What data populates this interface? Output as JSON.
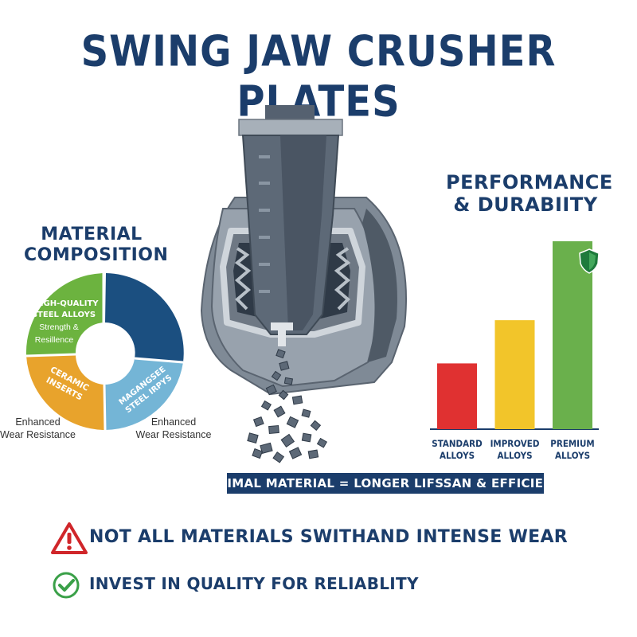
{
  "title": "SWING JAW CRUSHER PLATES",
  "material_composition": {
    "heading_line1": "MATERIAL",
    "heading_line2": "COMPOSITION",
    "segments": [
      {
        "name": "High-Quality Steel Alloys",
        "line1": "HIGH-QUALITY",
        "line2": "STEEL ALLOYS",
        "line3": "Strength &",
        "line4": "Resillence",
        "color": "#6cb33f"
      },
      {
        "name": "Ceramic Inserts",
        "line1": "CERAMIC",
        "line2": "INSERTS",
        "color": "#e8a32c"
      },
      {
        "name": "Magangsee Steel Irpys",
        "line1": "MAGANGSEE",
        "line2": "STEEL IRPYS",
        "color": "#74b5d6"
      },
      {
        "name": "Blue segment",
        "color": "#1b4f80"
      }
    ],
    "note_left_line1": "Enhanced",
    "note_left_line2": "Wear Resistance",
    "note_right_line1": "Enhanced",
    "note_right_line2": "Wear Resistance"
  },
  "performance": {
    "heading_line1": "PERFORMANCE",
    "heading_line2": "& DURABIITY",
    "shield_icon": "shield-icon"
  },
  "chart_data": {
    "type": "bar",
    "title": "PERFORMANCE & DURABIITY",
    "categories": [
      "STANDARD ALLOYS",
      "IMPROVED ALLOYS",
      "PREMIUM ALLOYS"
    ],
    "category_lines": [
      [
        "STANDARD",
        "ALLOYS"
      ],
      [
        "IMPROVED",
        "ALLOYS"
      ],
      [
        "PREMIUM",
        "ALLOYS"
      ]
    ],
    "values": [
      35,
      58,
      100
    ],
    "colors": [
      "#e03131",
      "#f2c52a",
      "#6ab04c"
    ],
    "ylim": [
      0,
      100
    ],
    "grid": false,
    "legend": "none"
  },
  "banner": "OPTIMAL MATERIAL = LONGER LIFSSAN & EFFICIENCY",
  "statements": {
    "warning_text": "NOT ALL MATERIALS SWITHAND INTENSE WEAR",
    "warning_icon": "warning-icon",
    "check_text": "INVEST IN QUALITY FOR RELIABLITY",
    "check_icon": "check-icon"
  }
}
